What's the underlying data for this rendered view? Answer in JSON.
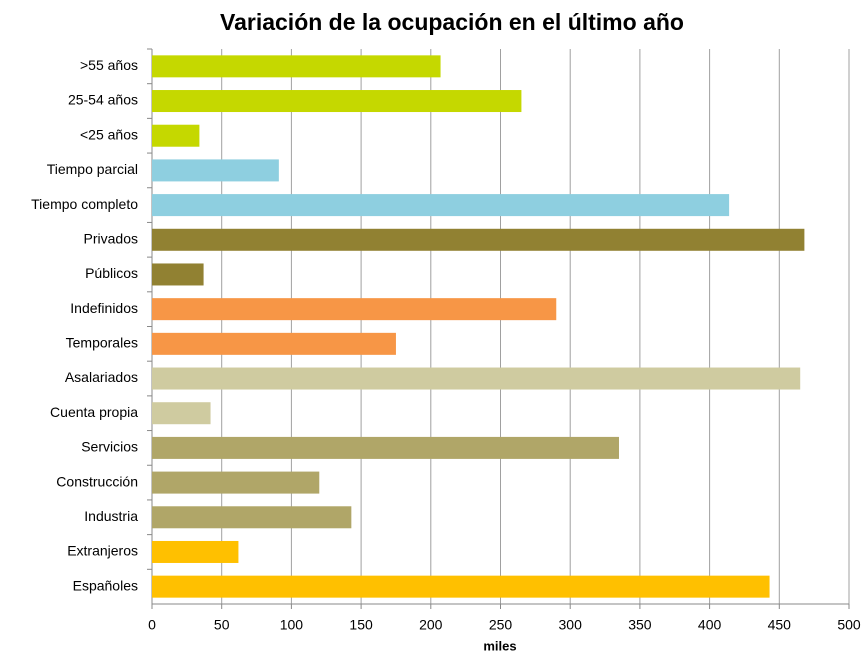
{
  "chart_data": {
    "type": "barh",
    "title": "Variación de la ocupación en el último año",
    "xlabel": "miles",
    "categories": [
      ">55 años",
      "25-54 años",
      "<25 años",
      "Tiempo parcial",
      "Tiempo completo",
      "Privados",
      "Públicos",
      "Indefinidos",
      "Temporales",
      "Asalariados",
      "Cuenta propia",
      "Servicios",
      "Construcción",
      "Industria",
      "Extranjeros",
      "Españoles"
    ],
    "values": [
      207,
      265,
      34,
      91,
      414,
      468,
      37,
      290,
      175,
      465,
      42,
      335,
      120,
      143,
      62,
      443
    ],
    "colors": [
      "#c5d800",
      "#c5d800",
      "#c5d800",
      "#8ecfe0",
      "#8ecfe0",
      "#918132",
      "#918132",
      "#f79646",
      "#f79646",
      "#cfcba0",
      "#cfcba0",
      "#b0a668",
      "#b0a668",
      "#b0a668",
      "#ffc000",
      "#ffc000"
    ],
    "xlim": [
      0,
      500
    ],
    "xticks": [
      0,
      50,
      100,
      150,
      200,
      250,
      300,
      350,
      400,
      450,
      500
    ],
    "grid": true
  }
}
